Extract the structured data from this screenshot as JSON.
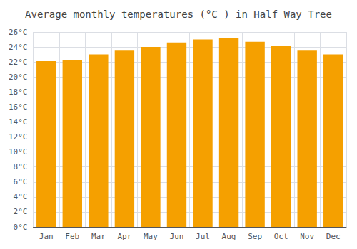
{
  "chart_data": {
    "type": "bar",
    "title": "Average monthly temperatures (°C ) in Half Way Tree",
    "categories": [
      "Jan",
      "Feb",
      "Mar",
      "Apr",
      "May",
      "Jun",
      "Jul",
      "Aug",
      "Sep",
      "Oct",
      "Nov",
      "Dec"
    ],
    "values": [
      22.1,
      22.2,
      23.0,
      23.6,
      24.0,
      24.6,
      25.0,
      25.2,
      24.7,
      24.1,
      23.6,
      23.0
    ],
    "color": "#F5A000",
    "ylim": [
      0,
      26
    ],
    "yticks": [
      {
        "value": 0,
        "label": "0°C"
      },
      {
        "value": 2,
        "label": "2°C"
      },
      {
        "value": 4,
        "label": "4°C"
      },
      {
        "value": 6,
        "label": "6°C"
      },
      {
        "value": 8,
        "label": "8°C"
      },
      {
        "value": 10,
        "label": "10°C"
      },
      {
        "value": 12,
        "label": "12°C"
      },
      {
        "value": 14,
        "label": "14°C"
      },
      {
        "value": 16,
        "label": "16°C"
      },
      {
        "value": 18,
        "label": "18°C"
      },
      {
        "value": 20,
        "label": "20°C"
      },
      {
        "value": 22,
        "label": "22°C"
      },
      {
        "value": 24,
        "label": "24°C"
      },
      {
        "value": 26,
        "label": "26°C"
      }
    ],
    "grid": true
  }
}
